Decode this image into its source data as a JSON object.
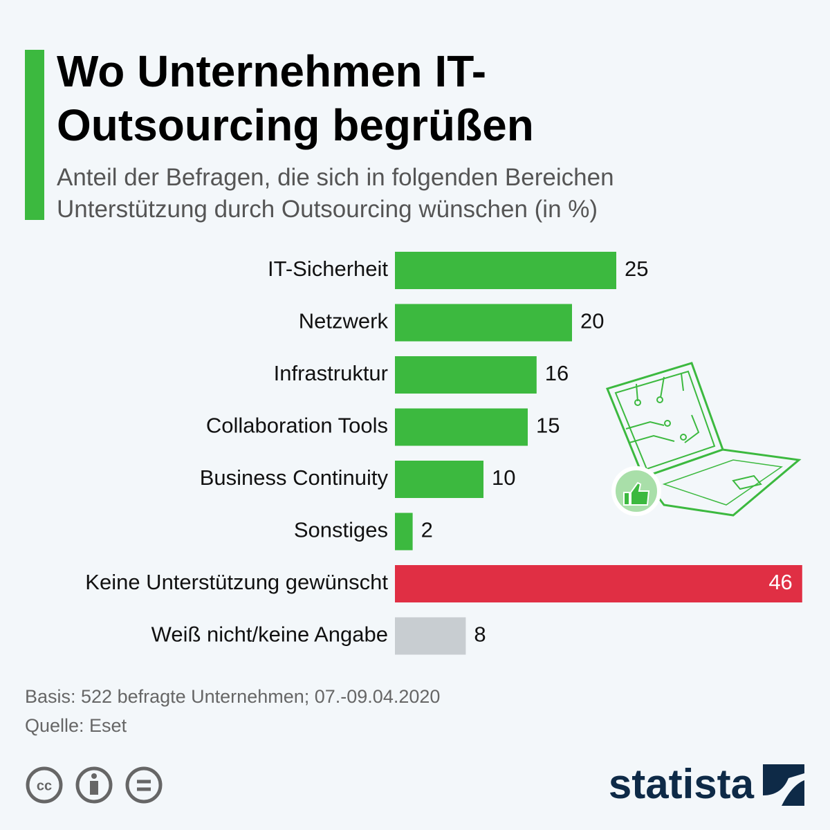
{
  "chart_data": {
    "type": "bar",
    "orientation": "horizontal",
    "title": "Wo Unternehmen IT-Outsourcing begrüßen",
    "subtitle": "Anteil der Befragen, die sich in folgenden Bereichen Unterstützung durch Outsourcing wünschen (in %)",
    "categories": [
      "IT-Sicherheit",
      "Netzwerk",
      "Infrastruktur",
      "Collaboration Tools",
      "Business Continuity",
      "Sonstiges",
      "Keine Unterstützung gewünscht",
      "Weiß nicht/keine Angabe"
    ],
    "values": [
      25,
      20,
      16,
      15,
      10,
      2,
      46,
      8
    ],
    "colors": [
      "#3cb93f",
      "#3cb93f",
      "#3cb93f",
      "#3cb93f",
      "#3cb93f",
      "#3cb93f",
      "#e02f44",
      "#c8cdd1"
    ],
    "notes": [
      "Basis: 522 befragte Unternehmen; 07.-09.04.2020",
      "Quelle: Eset"
    ],
    "brand": "statista"
  }
}
